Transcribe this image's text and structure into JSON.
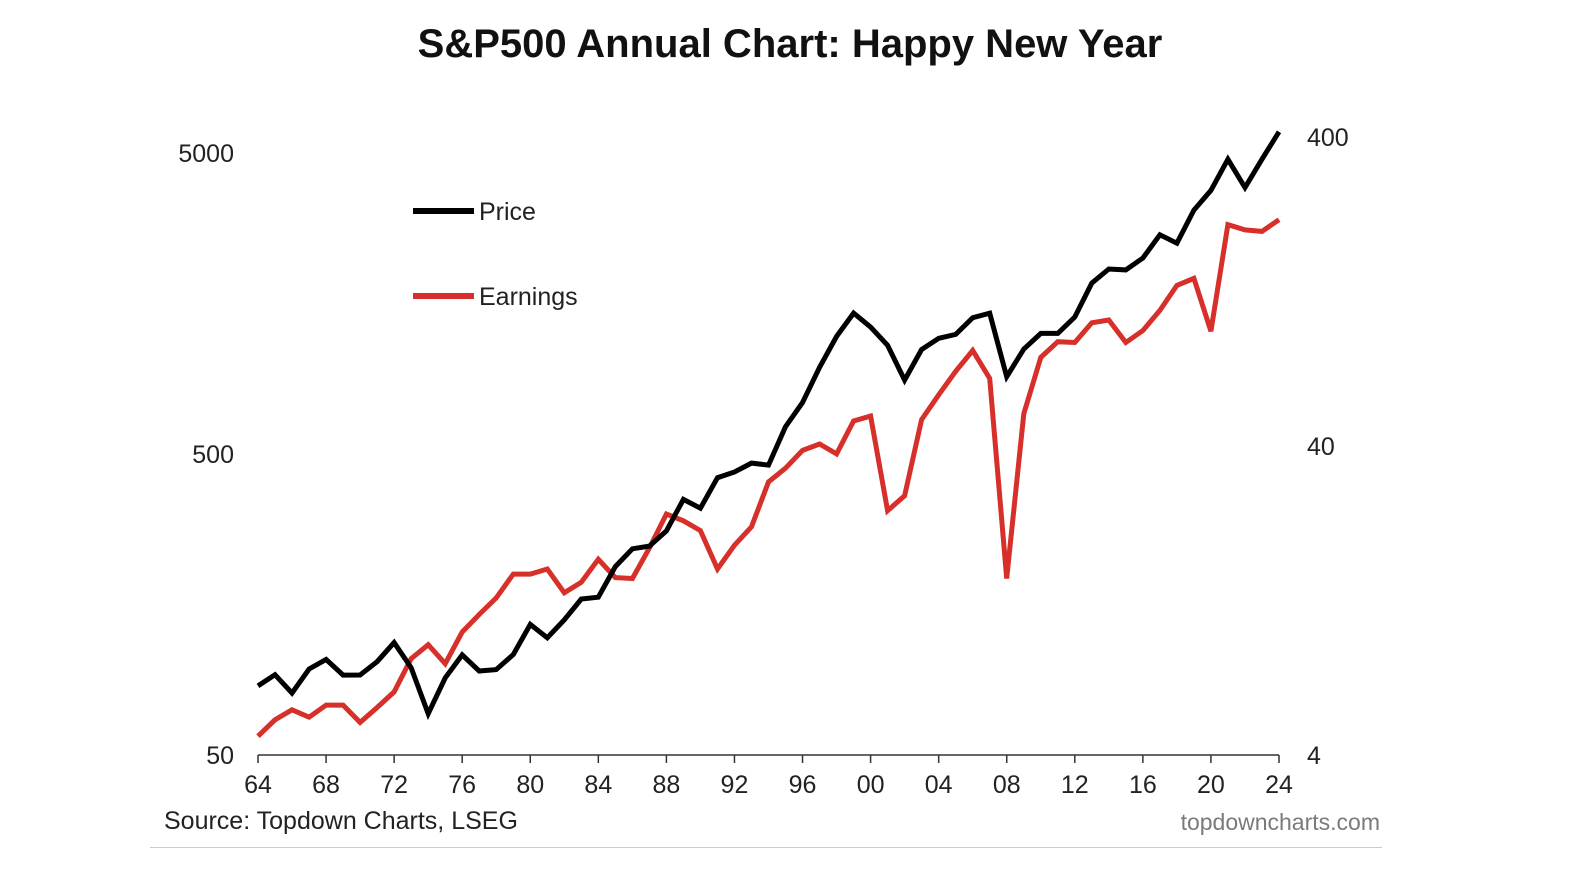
{
  "chart_data": {
    "type": "line",
    "title": "S&P500 Annual Chart: Happy New Year",
    "x_tick_labels": [
      "64",
      "68",
      "72",
      "76",
      "80",
      "84",
      "88",
      "92",
      "96",
      "00",
      "04",
      "08",
      "12",
      "16",
      "20",
      "24"
    ],
    "x_years": [
      1964,
      1965,
      1966,
      1967,
      1968,
      1969,
      1970,
      1971,
      1972,
      1973,
      1974,
      1975,
      1976,
      1977,
      1978,
      1979,
      1980,
      1981,
      1982,
      1983,
      1984,
      1985,
      1986,
      1987,
      1988,
      1989,
      1990,
      1991,
      1992,
      1993,
      1994,
      1995,
      1996,
      1997,
      1998,
      1999,
      2000,
      2001,
      2002,
      2003,
      2004,
      2005,
      2006,
      2007,
      2008,
      2009,
      2010,
      2011,
      2012,
      2013,
      2014,
      2015,
      2016,
      2017,
      2018,
      2019,
      2020,
      2021,
      2022,
      2023,
      2024
    ],
    "left_axis": {
      "scale": "log",
      "range": [
        50,
        6000
      ],
      "tick_values": [
        5000,
        500,
        50
      ],
      "tick_labels": [
        "5000",
        "500",
        "50"
      ],
      "series": "Price"
    },
    "right_axis": {
      "scale": "log",
      "range": [
        4,
        440
      ],
      "tick_values": [
        400,
        40,
        4
      ],
      "tick_labels": [
        "400",
        "40",
        "4"
      ],
      "series": "Earnings"
    },
    "series": [
      {
        "name": "Price",
        "axis": "left",
        "color": "#000000",
        "values": [
          84.8,
          92.4,
          80.3,
          96.5,
          103.9,
          92.1,
          92.2,
          102.1,
          118.1,
          97.6,
          68.6,
          90.2,
          107.5,
          95.1,
          96.1,
          107.9,
          135.8,
          122.6,
          140.6,
          164.9,
          167.2,
          211.3,
          242.2,
          247.1,
          277.7,
          353.4,
          330.2,
          417.1,
          435.7,
          466.5,
          459.3,
          615.9,
          740.7,
          970.4,
          1229.2,
          1469.3,
          1320.3,
          1148.1,
          879.8,
          1111.9,
          1211.9,
          1248.3,
          1418.3,
          1468.4,
          903.3,
          1115.1,
          1257.6,
          1257.6,
          1426.2,
          1848.4,
          2058.9,
          2043.9,
          2238.8,
          2673.6,
          2506.9,
          3230.8,
          3756.1,
          4766.2,
          3839.5,
          4769.8,
          5881.6
        ]
      },
      {
        "name": "Earnings",
        "axis": "right",
        "color": "#d72f2a",
        "values": [
          4.6,
          5.2,
          5.6,
          5.3,
          5.8,
          5.8,
          5.1,
          5.7,
          6.4,
          8.2,
          9.1,
          7.9,
          10.0,
          11.4,
          12.9,
          15.4,
          15.4,
          16.0,
          13.4,
          14.5,
          17.2,
          15.0,
          14.9,
          18.7,
          24.1,
          22.9,
          21.3,
          16.0,
          19.1,
          21.9,
          30.6,
          33.9,
          38.7,
          40.6,
          37.7,
          48.2,
          50.0,
          24.7,
          27.6,
          48.7,
          58.6,
          69.8,
          81.5,
          66.2,
          14.9,
          50.9,
          77.4,
          87.0,
          86.5,
          100.2,
          102.3,
          86.5,
          94.6,
          109.9,
          132.4,
          139.5,
          94.1,
          208.2,
          200.2,
          197.9,
          216.0
        ]
      }
    ],
    "legend": {
      "placement": "top-left",
      "entries": [
        "Price",
        "Earnings"
      ]
    }
  },
  "source": "Source: Topdown Charts, LSEG",
  "watermark": "topdowncharts.com"
}
